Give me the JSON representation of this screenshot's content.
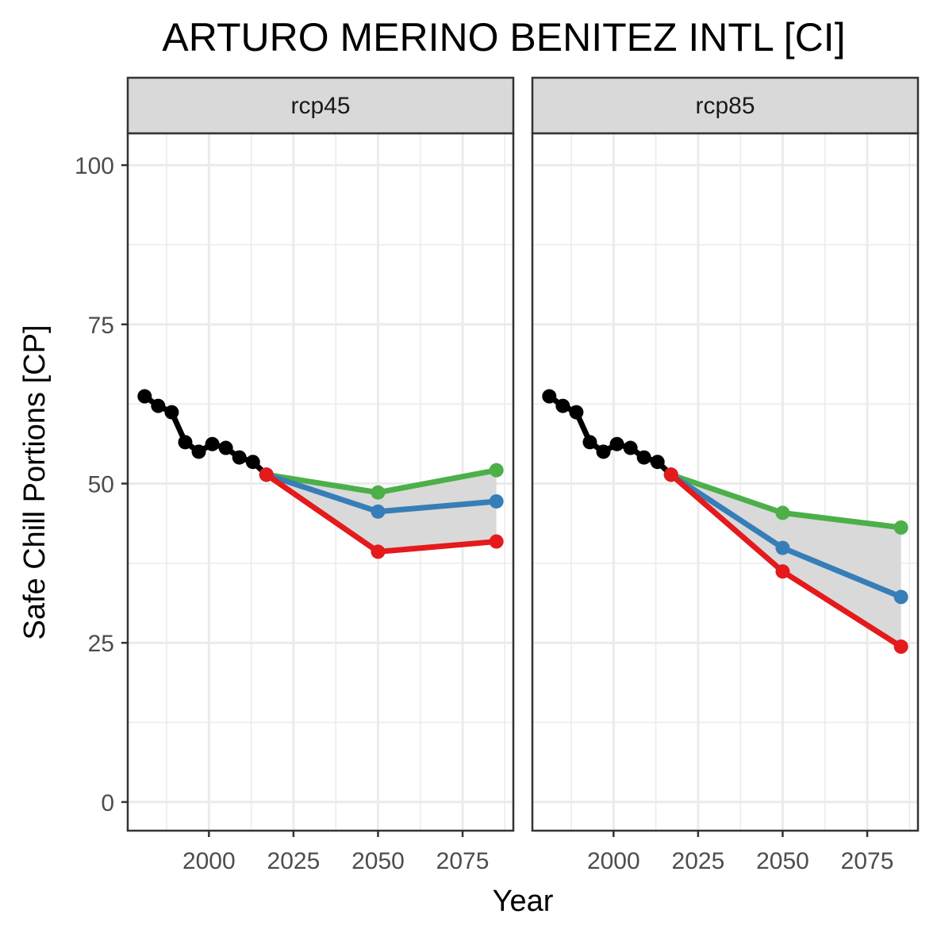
{
  "chart_data": {
    "type": "line",
    "title": "ARTURO MERINO BENITEZ INTL [CI]",
    "xlabel": "Year",
    "ylabel": "Safe Chill Portions [CP]",
    "xlim": [
      1976,
      2090
    ],
    "ylim": [
      -4.5,
      105
    ],
    "x_ticks": [
      2000,
      2025,
      2050,
      2075
    ],
    "y_ticks": [
      0,
      25,
      50,
      75,
      100
    ],
    "grid": true,
    "legend": "none",
    "colors": {
      "historic": "#000000",
      "low": "#E41A1C",
      "median": "#377EB8",
      "high": "#4DAF4A",
      "band": "#D9D9D9",
      "strip_bg": "#D9D9D9",
      "grid": "#EBEBEB",
      "border": "#333333"
    },
    "panels": [
      {
        "label": "rcp45",
        "historic": {
          "x": [
            1981,
            1985,
            1989,
            1993,
            1997,
            2001,
            2005,
            2009,
            2013,
            2017
          ],
          "y": [
            63.7,
            62.2,
            61.2,
            56.5,
            55.0,
            56.2,
            55.6,
            54.1,
            53.4,
            51.4
          ]
        },
        "band_x": [
          2017,
          2050,
          2085
        ],
        "band_low": [
          51.4,
          39.3,
          40.9
        ],
        "band_high": [
          51.4,
          48.6,
          52.1
        ],
        "series": [
          {
            "role": "high",
            "x": [
              2017,
              2050,
              2085
            ],
            "y": [
              51.4,
              48.6,
              52.1
            ]
          },
          {
            "role": "median",
            "x": [
              2017,
              2050,
              2085
            ],
            "y": [
              51.4,
              45.6,
              47.2
            ]
          },
          {
            "role": "low",
            "x": [
              2017,
              2050,
              2085
            ],
            "y": [
              51.4,
              39.3,
              40.9
            ]
          }
        ]
      },
      {
        "label": "rcp85",
        "historic": {
          "x": [
            1981,
            1985,
            1989,
            1993,
            1997,
            2001,
            2005,
            2009,
            2013,
            2017
          ],
          "y": [
            63.7,
            62.2,
            61.2,
            56.5,
            55.0,
            56.2,
            55.6,
            54.1,
            53.4,
            51.4
          ]
        },
        "band_x": [
          2017,
          2050,
          2085
        ],
        "band_low": [
          51.4,
          36.2,
          24.4
        ],
        "band_high": [
          51.4,
          45.4,
          43.1
        ],
        "series": [
          {
            "role": "high",
            "x": [
              2017,
              2050,
              2085
            ],
            "y": [
              51.4,
              45.4,
              43.1
            ]
          },
          {
            "role": "median",
            "x": [
              2017,
              2050,
              2085
            ],
            "y": [
              51.4,
              39.9,
              32.2
            ]
          },
          {
            "role": "low",
            "x": [
              2017,
              2050,
              2085
            ],
            "y": [
              51.4,
              36.2,
              24.4
            ]
          }
        ]
      }
    ]
  }
}
